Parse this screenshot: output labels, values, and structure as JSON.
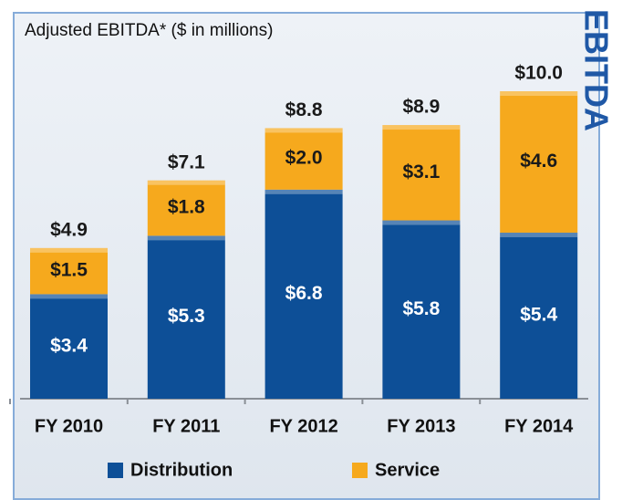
{
  "chart_data": {
    "type": "stacked_bar",
    "title": "Adjusted EBITDA* ($ in millions)",
    "side_label": "EBITDA",
    "categories": [
      "FY 2010",
      "FY 2011",
      "FY 2012",
      "FY 2013",
      "FY 2014"
    ],
    "series": [
      {
        "name": "Distribution",
        "color": "#0d4f97",
        "label_color": "#ffffff",
        "values": [
          3.4,
          5.3,
          6.8,
          5.8,
          5.4
        ],
        "value_labels": [
          "$3.4",
          "$5.3",
          "$6.8",
          "$5.8",
          "$5.4"
        ]
      },
      {
        "name": "Service",
        "color": "#f6a91d",
        "label_color": "#1a1a1a",
        "values": [
          1.5,
          1.8,
          2.0,
          3.1,
          4.6
        ],
        "value_labels": [
          "$1.5",
          "$1.8",
          "$2.0",
          "$3.1",
          "$4.6"
        ]
      }
    ],
    "totals": {
      "values": [
        4.9,
        7.1,
        8.8,
        8.9,
        10.0
      ],
      "value_labels": [
        "$4.9",
        "$7.1",
        "$8.8",
        "$8.9",
        "$10.0"
      ]
    }
  }
}
